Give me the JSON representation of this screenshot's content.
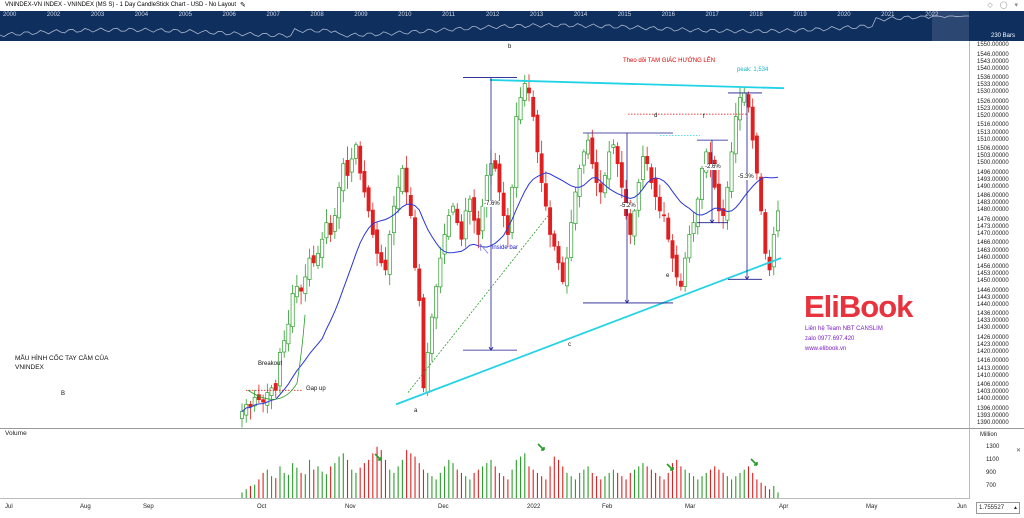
{
  "header": {
    "title": "VNINDEX-VN INDEX - VNINDEX (MS S) - 1 Day CandleStick Chart - USD - No Layout",
    "pen_icon": "pencil-icon",
    "right_icons": [
      "diamond-icon",
      "circle-icon",
      "dropdown-icon"
    ]
  },
  "overview": {
    "years": [
      "2000",
      "2002",
      "2003",
      "2004",
      "2005",
      "2006",
      "2007",
      "2008",
      "2009",
      "2010",
      "2011",
      "2012",
      "2013",
      "2014",
      "2015",
      "2016",
      "2017",
      "2018",
      "2019",
      "2020",
      "2021",
      "2022"
    ],
    "bars_badge": "230 Bars",
    "colors": {
      "background": "#0f2f5f",
      "line": "#aab7cc"
    }
  },
  "price_axis": {
    "labels": [
      "1550.00000",
      "1546.00000",
      "1543.00000",
      "1540.00000",
      "1536.00000",
      "1533.00000",
      "1530.00000",
      "1526.00000",
      "1523.00000",
      "1520.00000",
      "1516.00000",
      "1513.00000",
      "1510.00000",
      "1506.00000",
      "1503.00000",
      "1500.00000",
      "1496.00000",
      "1493.00000",
      "1490.00000",
      "1486.00000",
      "1483.00000",
      "1480.00000",
      "1476.00000",
      "1473.00000",
      "1470.00000",
      "1466.00000",
      "1463.00000",
      "1460.00000",
      "1456.00000",
      "1453.00000",
      "1450.00000",
      "1446.00000",
      "1443.00000",
      "1440.00000",
      "1436.00000",
      "1433.00000",
      "1430.00000",
      "1426.00000",
      "1423.00000",
      "1420.00000",
      "1416.00000",
      "1413.00000",
      "1410.00000",
      "1406.00000",
      "1403.00000",
      "1400.00000",
      "1396.00000",
      "1393.00000",
      "1390.00000"
    ],
    "lock_icon": "lock-icon"
  },
  "volume": {
    "label": "Volume",
    "unit": "Million",
    "ticks": [
      "1300",
      "1100",
      "900",
      "700"
    ],
    "close_icon": "close-icon"
  },
  "date_axis": {
    "labels": [
      "Jul",
      "Aug",
      "Sep",
      "Oct",
      "Nov",
      "Dec",
      "2022",
      "Feb",
      "Mar",
      "Apr",
      "May",
      "Jun"
    ]
  },
  "zoom": {
    "value": "1.755527",
    "dropdown_icon": "chevron-down-icon"
  },
  "annotations": {
    "a": "a",
    "b": "b",
    "c": "c",
    "d": "d",
    "e": "e",
    "f": "f",
    "big_b": "B",
    "breakout": "Breakout",
    "gap_up": "Gap up",
    "inside_bar": "inside bar",
    "headline": "Theo dõi TAM GIÁC HƯỚNG LÊN",
    "peak": "peak: 1,534",
    "pct1": "-7.6%",
    "pct2": "-5.2%",
    "pct3": "-2.6%",
    "pct4": "-5.3%",
    "note_line1": "MẪU HÌNH CỐC TAY CẦM CỦA",
    "note_line2": "VNINDEX"
  },
  "logo": {
    "brand": "EliBook",
    "line1": "Liên hệ Team NBT CANSLIM",
    "line2": "zalo 0977.697.420",
    "line3": "www.elibook.vn",
    "colors": {
      "brand": "#e8323d",
      "book": "#7a1fc2"
    }
  },
  "colors": {
    "up": "#2a9d2a",
    "down": "#e02020",
    "ma": "#2b36d9",
    "trend": "#22d3e6",
    "measure": "#1a1a8c",
    "dotted_red": "#e00000",
    "green_trend": "#2a9d2a"
  },
  "chart_data": {
    "type": "candlestick",
    "title": "VNINDEX-VN INDEX - VNINDEX (MS S) - 1 Day CandleStick Chart - USD - No Layout",
    "ylim": [
      1388,
      1552
    ],
    "y_ticks": [
      1550,
      1546,
      1543,
      1540,
      1536,
      1533,
      1530,
      1526,
      1523,
      1520,
      1516,
      1513,
      1510,
      1506,
      1503,
      1500,
      1496,
      1493,
      1490,
      1486,
      1483,
      1480,
      1476,
      1473,
      1470,
      1466,
      1463,
      1460,
      1456,
      1453,
      1450,
      1446,
      1443,
      1440,
      1436,
      1433,
      1430,
      1426,
      1423,
      1420,
      1416,
      1413,
      1410,
      1406,
      1403,
      1400,
      1396,
      1393,
      1390
    ],
    "x_labels": [
      "Jul",
      "Aug",
      "Sep",
      "Oct",
      "Nov",
      "Dec",
      "2022",
      "Feb",
      "Mar",
      "Apr",
      "May",
      "Jun"
    ],
    "trendlines": [
      {
        "name": "resistance",
        "from": [
          1536,
          "Dec start"
        ],
        "to": [
          1532,
          "Mar end"
        ]
      },
      {
        "name": "support",
        "from": [
          1398,
          "Nov end"
        ],
        "to": [
          1460,
          "Mar end"
        ]
      }
    ],
    "candles_close": [
      1395,
      1398,
      1397,
      1401,
      1400,
      1399,
      1403,
      1405,
      1404,
      1420,
      1425,
      1432,
      1445,
      1448,
      1446,
      1452,
      1460,
      1458,
      1462,
      1468,
      1475,
      1470,
      1478,
      1490,
      1500,
      1495,
      1502,
      1508,
      1496,
      1488,
      1480,
      1470,
      1462,
      1458,
      1455,
      1470,
      1482,
      1490,
      1498,
      1488,
      1478,
      1456,
      1442,
      1405,
      1420,
      1435,
      1448,
      1460,
      1470,
      1478,
      1482,
      1475,
      1468,
      1480,
      1485,
      1476,
      1470,
      1482,
      1495,
      1500,
      1498,
      1488,
      1478,
      1470,
      1490,
      1520,
      1528,
      1534,
      1530,
      1520,
      1505,
      1492,
      1482,
      1470,
      1465,
      1458,
      1450,
      1460,
      1475,
      1488,
      1498,
      1505,
      1510,
      1500,
      1492,
      1488,
      1495,
      1505,
      1508,
      1500,
      1490,
      1478,
      1470,
      1480,
      1492,
      1503,
      1500,
      1492,
      1486,
      1480,
      1478,
      1468,
      1460,
      1452,
      1448,
      1460,
      1470,
      1475,
      1485,
      1498,
      1505,
      1500,
      1490,
      1480,
      1478,
      1490,
      1505,
      1520,
      1528,
      1530,
      1524,
      1510,
      1496,
      1480,
      1462,
      1455,
      1470,
      1480
    ],
    "volume": [
      600,
      650,
      700,
      720,
      800,
      900,
      950,
      850,
      820,
      1000,
      900,
      870,
      1050,
      980,
      900,
      880,
      1100,
      950,
      1000,
      920,
      880,
      1000,
      1050,
      1150,
      1200,
      1100,
      950,
      900,
      980,
      1050,
      1100,
      1200,
      1300,
      1250,
      1100,
      950,
      900,
      1000,
      1100,
      1250,
      1200,
      1150,
      1050,
      950,
      900,
      850,
      800,
      900,
      1000,
      1100,
      1050,
      950,
      900,
      850,
      800,
      900,
      950,
      1000,
      1050,
      1100,
      1000,
      900,
      850,
      800,
      950,
      1100,
      1150,
      1200,
      1000,
      950,
      900,
      850,
      800,
      1000,
      1150,
      1100,
      1000,
      900,
      850,
      800,
      900,
      950,
      1000,
      900,
      850,
      800,
      850,
      900,
      950,
      900,
      850,
      800,
      900,
      950,
      1000,
      1050,
      1000,
      950,
      900,
      850,
      800,
      900,
      1050,
      1100,
      1000,
      950,
      900,
      850,
      800,
      850,
      900,
      950,
      1000,
      950,
      900,
      850,
      800,
      850,
      900,
      950,
      1000,
      900,
      800,
      750,
      700,
      650,
      700,
      600
    ]
  }
}
